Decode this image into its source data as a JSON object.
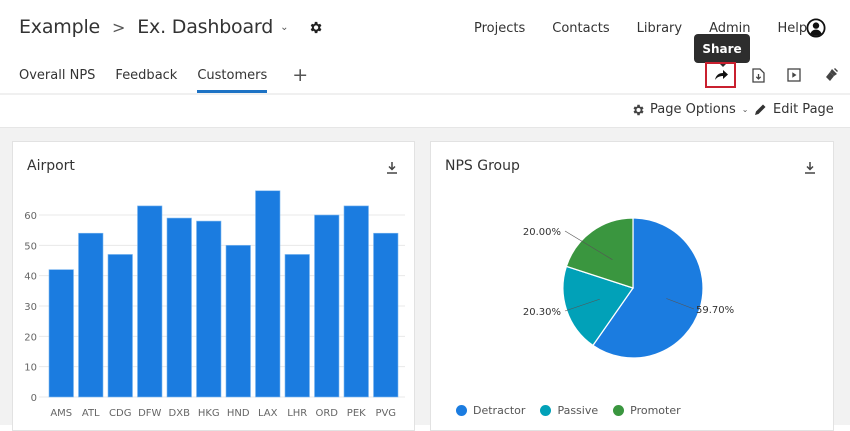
{
  "header": {
    "breadcrumb_root": "Example",
    "breadcrumb_separator": ">",
    "dashboard_name": "Ex. Dashboard",
    "nav": [
      "Projects",
      "Contacts",
      "Library",
      "Admin",
      "Help"
    ]
  },
  "tabs": [
    {
      "label": "Overall NPS",
      "active": false
    },
    {
      "label": "Feedback",
      "active": false
    },
    {
      "label": "Customers",
      "active": true
    }
  ],
  "add_tab_label": "+",
  "toolbar": {
    "tooltip": "Share",
    "icons": [
      "share-icon",
      "export-icon",
      "present-icon",
      "theme-brush-icon"
    ],
    "highlight_color": "#c9202f"
  },
  "options_bar": {
    "page_options_label": "Page Options",
    "edit_page_label": "Edit Page"
  },
  "widgets": [
    {
      "title": "Airport",
      "type": "bar"
    },
    {
      "title": "NPS Group",
      "type": "pie"
    }
  ],
  "colors": {
    "bar": "#1b7ce0",
    "detractor": "#1b7ce0",
    "passive": "#01a1b8",
    "promoter": "#3a963f",
    "tab_underline": "#1d72c4"
  },
  "chart_data": [
    {
      "type": "bar",
      "title": "Airport",
      "xlabel": "",
      "ylabel": "",
      "categories": [
        "AMS",
        "ATL",
        "CDG",
        "DFW",
        "DXB",
        "HKG",
        "HND",
        "LAX",
        "LHR",
        "ORD",
        "PEK",
        "PVG"
      ],
      "values": [
        42,
        54,
        47,
        63,
        59,
        58,
        50,
        68,
        47,
        60,
        63,
        54
      ],
      "yticks": [
        0,
        10,
        20,
        30,
        40,
        50,
        60
      ],
      "ylim": [
        0,
        70
      ],
      "grid": true
    },
    {
      "type": "pie",
      "title": "NPS Group",
      "labels": [
        "Detractor",
        "Passive",
        "Promoter"
      ],
      "values": [
        59.7,
        20.3,
        20.0
      ],
      "data_labels": [
        "59.70%",
        "20.30%",
        "20.00%"
      ],
      "legend_position": "bottom"
    }
  ]
}
